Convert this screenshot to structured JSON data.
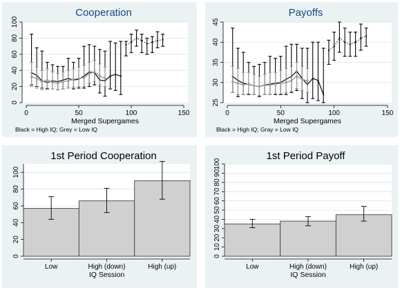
{
  "figure": {
    "background": "#eaf2f3"
  },
  "chart_data": [
    {
      "id": "cooperation",
      "type": "line",
      "title": "Cooperation",
      "title_color": "#1a477f",
      "xlabel": "Merged Supergames",
      "ylabel": "",
      "xlim": [
        0,
        150
      ],
      "ylim": [
        0,
        100
      ],
      "xticks": [
        0,
        50,
        100,
        150
      ],
      "yticks": [
        0,
        20,
        40,
        60,
        80,
        100
      ],
      "grid": true,
      "note": "Black = High IQ; Grey = Low IQ",
      "series": [
        {
          "color": "#000000",
          "line": "solid",
          "points": [
            [
              5,
              37
            ],
            [
              10,
              34
            ],
            [
              15,
              27
            ],
            [
              20,
              25
            ],
            [
              25,
              27
            ],
            [
              30,
              26
            ],
            [
              35,
              28
            ],
            [
              40,
              30
            ],
            [
              45,
              28
            ],
            [
              50,
              29
            ],
            [
              55,
              33
            ],
            [
              60,
              38
            ],
            [
              65,
              37
            ],
            [
              70,
              28
            ],
            [
              75,
              27
            ],
            [
              80,
              33
            ],
            [
              85,
              35
            ],
            [
              90,
              33
            ]
          ],
          "ci": [
            [
              5,
              22,
              85
            ],
            [
              10,
              20,
              68
            ],
            [
              15,
              18,
              64
            ],
            [
              20,
              17,
              50
            ],
            [
              25,
              17,
              47
            ],
            [
              30,
              16,
              45
            ],
            [
              35,
              17,
              45
            ],
            [
              40,
              18,
              55
            ],
            [
              45,
              17,
              50
            ],
            [
              50,
              18,
              55
            ],
            [
              55,
              18,
              70
            ],
            [
              60,
              20,
              72
            ],
            [
              65,
              22,
              70
            ],
            [
              70,
              12,
              66
            ],
            [
              75,
              8,
              64
            ],
            [
              80,
              17,
              76
            ],
            [
              85,
              15,
              74
            ],
            [
              90,
              10,
              76
            ]
          ]
        },
        {
          "color": "#000000",
          "line": "dotted",
          "points": [
            [
              95,
              72
            ],
            [
              100,
              75
            ],
            [
              105,
              80
            ],
            [
              110,
              77
            ],
            [
              115,
              73
            ],
            [
              120,
              75
            ],
            [
              125,
              77
            ],
            [
              130,
              78
            ]
          ],
          "ci": [
            [
              95,
              58
            ],
            [
              100,
              62
            ],
            [
              105,
              70
            ],
            [
              110,
              62
            ],
            [
              115,
              60
            ],
            [
              120,
              62
            ],
            [
              125,
              68
            ],
            [
              130,
              70
            ]
          ],
          "ci_hi": [
            76,
            85,
            90,
            85,
            80,
            82,
            88,
            85
          ]
        },
        {
          "color": "#9a9a9a",
          "line": "solid",
          "points": [
            [
              5,
              32
            ],
            [
              10,
              30
            ],
            [
              15,
              26
            ],
            [
              20,
              28
            ],
            [
              25,
              25
            ],
            [
              30,
              24
            ],
            [
              35,
              26
            ],
            [
              40,
              27
            ],
            [
              45,
              29
            ],
            [
              50,
              30
            ],
            [
              55,
              31
            ],
            [
              60,
              36
            ],
            [
              65,
              38
            ],
            [
              70,
              33
            ],
            [
              75,
              30
            ]
          ],
          "ci": [
            [
              5,
              20,
              50
            ],
            [
              10,
              18,
              44
            ],
            [
              15,
              16,
              40
            ],
            [
              20,
              18,
              42
            ],
            [
              25,
              17,
              38
            ],
            [
              30,
              16,
              36
            ],
            [
              35,
              17,
              38
            ],
            [
              40,
              18,
              40
            ],
            [
              45,
              19,
              42
            ],
            [
              50,
              20,
              44
            ],
            [
              55,
              20,
              46
            ],
            [
              60,
              24,
              50
            ],
            [
              65,
              26,
              52
            ],
            [
              70,
              22,
              48
            ],
            [
              75,
              20,
              44
            ]
          ]
        }
      ]
    },
    {
      "id": "payoffs",
      "type": "line",
      "title": "Payoffs",
      "title_color": "#1a477f",
      "xlabel": "Merged Supergames",
      "ylabel": "",
      "xlim": [
        0,
        150
      ],
      "ylim": [
        25,
        45
      ],
      "xticks": [
        0,
        50,
        100,
        150
      ],
      "yticks": [
        25,
        30,
        35,
        40,
        45
      ],
      "grid": true,
      "note": "Black = High IQ; Gray = Low IQ",
      "series": [
        {
          "color": "#000000",
          "line": "solid",
          "points": [
            [
              5,
              31.5
            ],
            [
              10,
              30.5
            ],
            [
              15,
              29.8
            ],
            [
              20,
              29.5
            ],
            [
              25,
              29.2
            ],
            [
              30,
              29.0
            ],
            [
              35,
              29.4
            ],
            [
              40,
              29.6
            ],
            [
              45,
              29.8
            ],
            [
              50,
              30.0
            ],
            [
              55,
              30.8
            ],
            [
              60,
              31.5
            ],
            [
              65,
              32.8
            ],
            [
              70,
              31.0
            ],
            [
              75,
              29.5
            ],
            [
              80,
              31.0
            ],
            [
              85,
              30.5
            ],
            [
              90,
              27.0
            ]
          ],
          "ci": [
            [
              5,
              27.5,
              43.5
            ],
            [
              10,
              26.5,
              38.5
            ],
            [
              15,
              27.0,
              37.5
            ],
            [
              20,
              27.0,
              35.0
            ],
            [
              25,
              27.0,
              34.0
            ],
            [
              30,
              26.5,
              34.5
            ],
            [
              35,
              27.0,
              35.0
            ],
            [
              40,
              27.0,
              36.5
            ],
            [
              45,
              27.0,
              36.0
            ],
            [
              50,
              27.0,
              36.5
            ],
            [
              55,
              27.0,
              39.0
            ],
            [
              60,
              27.5,
              39.5
            ],
            [
              65,
              28.0,
              39.5
            ],
            [
              70,
              26.0,
              38.5
            ],
            [
              75,
              24.0,
              38.5
            ],
            [
              80,
              26.0,
              40.0
            ],
            [
              85,
              25.5,
              40.0
            ],
            [
              90,
              24.0,
              38.5
            ]
          ]
        },
        {
          "color": "#000000",
          "line": "dotted",
          "points": [
            [
              95,
              38.0
            ],
            [
              100,
              39.0
            ],
            [
              105,
              41.0
            ],
            [
              110,
              40.0
            ],
            [
              115,
              39.5
            ],
            [
              120,
              40.0
            ],
            [
              125,
              41.0
            ],
            [
              130,
              41.5
            ]
          ],
          "ci": [
            [
              95,
              34.5
            ],
            [
              100,
              35.5
            ],
            [
              105,
              37.5
            ],
            [
              110,
              36.5
            ],
            [
              115,
              36.5
            ],
            [
              120,
              36.5
            ],
            [
              125,
              38.0
            ],
            [
              130,
              39.0
            ]
          ],
          "ci_hi": [
            40.5,
            42.5,
            45.0,
            43.5,
            42.5,
            42.5,
            44.5,
            43.5
          ]
        },
        {
          "color": "#9a9a9a",
          "line": "solid",
          "points": [
            [
              5,
              30.2
            ],
            [
              10,
              29.8
            ],
            [
              15,
              29.4
            ],
            [
              20,
              29.6
            ],
            [
              25,
              29.2
            ],
            [
              30,
              29.0
            ],
            [
              35,
              29.3
            ],
            [
              40,
              29.4
            ],
            [
              45,
              29.6
            ],
            [
              50,
              29.8
            ],
            [
              55,
              30.0
            ],
            [
              60,
              30.5
            ],
            [
              65,
              31.5
            ],
            [
              70,
              30.8
            ],
            [
              75,
              30.4
            ]
          ],
          "ci": [
            [
              5,
              27.5,
              34.0
            ],
            [
              10,
              27.0,
              33.5
            ],
            [
              15,
              27.0,
              32.5
            ],
            [
              20,
              27.2,
              32.5
            ],
            [
              25,
              27.0,
              32.0
            ],
            [
              30,
              26.8,
              31.5
            ],
            [
              35,
              27.0,
              32.0
            ],
            [
              40,
              27.0,
              32.5
            ],
            [
              45,
              27.2,
              32.5
            ],
            [
              50,
              27.2,
              33.0
            ],
            [
              55,
              27.5,
              33.5
            ],
            [
              60,
              27.8,
              34.0
            ],
            [
              65,
              28.5,
              35.0
            ],
            [
              70,
              28.0,
              34.0
            ],
            [
              75,
              27.5,
              33.5
            ]
          ]
        }
      ]
    },
    {
      "id": "first-period-cooperation",
      "type": "bar",
      "title": "1st Period Cooperation",
      "title_color": "#000000",
      "xlabel": "IQ Session",
      "ylabel": "",
      "ylim": [
        0,
        110
      ],
      "yticks": [
        0,
        20,
        40,
        60,
        80,
        100
      ],
      "grid": true,
      "categories": [
        "Low",
        "High (down)",
        "High (up)"
      ],
      "values": [
        57,
        66,
        90
      ],
      "error_low": [
        44,
        52,
        68
      ],
      "error_high": [
        71,
        81,
        113
      ]
    },
    {
      "id": "first-period-payoff",
      "type": "bar",
      "title": "1st Period Payoff",
      "title_color": "#000000",
      "xlabel": "IQ Session",
      "ylabel": "",
      "ylim": [
        0,
        100
      ],
      "yticks": [
        0,
        10,
        20,
        30,
        40,
        50,
        60,
        70,
        80,
        90,
        100
      ],
      "grid": true,
      "categories": [
        "Low",
        "High (down)",
        "High (up)"
      ],
      "values": [
        35,
        38,
        45
      ],
      "error_low": [
        31,
        33,
        38
      ],
      "error_high": [
        40,
        43,
        54
      ]
    }
  ]
}
